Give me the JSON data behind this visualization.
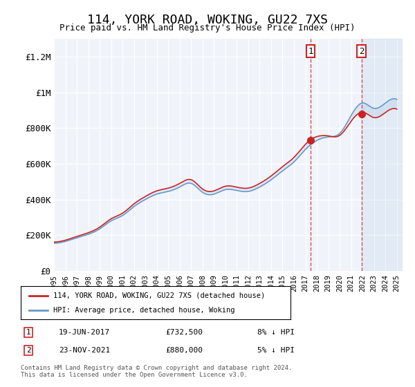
{
  "title": "114, YORK ROAD, WOKING, GU22 7XS",
  "subtitle": "Price paid vs. HM Land Registry's House Price Index (HPI)",
  "ylabel": "",
  "ylim": [
    0,
    1300000
  ],
  "yticks": [
    0,
    200000,
    400000,
    600000,
    800000,
    1000000,
    1200000
  ],
  "ytick_labels": [
    "£0",
    "£200K",
    "£400K",
    "£600K",
    "£800K",
    "£1M",
    "£1.2M"
  ],
  "background_color": "#ffffff",
  "plot_background": "#f0f4fa",
  "grid_color": "#ffffff",
  "hpi_color": "#6699cc",
  "price_color": "#cc2222",
  "purchase1_date": 2017.46,
  "purchase1_price": 732500,
  "purchase2_date": 2021.9,
  "purchase2_price": 880000,
  "legend_house": "114, YORK ROAD, WOKING, GU22 7XS (detached house)",
  "legend_hpi": "HPI: Average price, detached house, Woking",
  "table_row1": [
    "1",
    "19-JUN-2017",
    "£732,500",
    "8% ↓ HPI"
  ],
  "table_row2": [
    "2",
    "23-NOV-2021",
    "£880,000",
    "5% ↓ HPI"
  ],
  "footnote": "Contains HM Land Registry data © Crown copyright and database right 2024.\nThis data is licensed under the Open Government Licence v3.0.",
  "xmin": 1995,
  "xmax": 2025.5
}
